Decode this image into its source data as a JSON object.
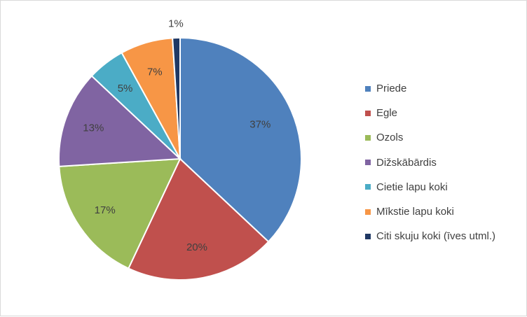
{
  "chart_data": {
    "type": "pie",
    "title": "",
    "categories": [
      "Priede",
      "Egle",
      "Ozols",
      "Dižskābārdis",
      "Cietie lapu koki",
      "Mīkstie lapu koki",
      "Citi skuju koki (īves utml.)"
    ],
    "values": [
      37,
      20,
      17,
      13,
      5,
      7,
      1
    ],
    "data_labels": [
      "37%",
      "20%",
      "17%",
      "13%",
      "5%",
      "7%",
      "1%"
    ],
    "colors": [
      "#4f81bd",
      "#c0504d",
      "#9bbb59",
      "#8064a2",
      "#4bacc6",
      "#f79646",
      "#1f3864"
    ],
    "legend_position": "right"
  }
}
